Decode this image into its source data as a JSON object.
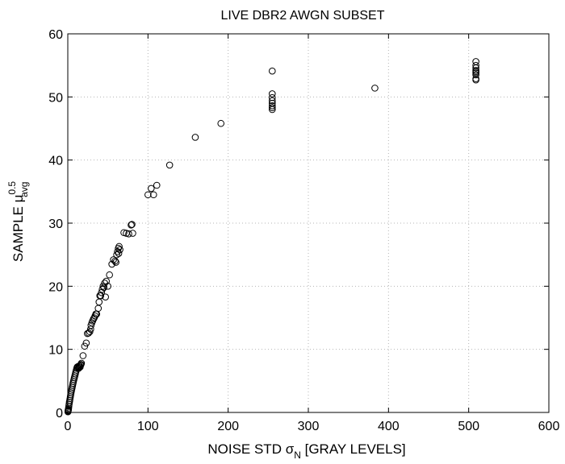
{
  "chart_data": {
    "type": "scatter",
    "title": "LIVE DBR2 AWGN SUBSET",
    "xlabel": {
      "prefix": "NOISE STD ",
      "symbol": "σ",
      "subscript": "N",
      "suffix": " [GRAY LEVELS]"
    },
    "ylabel": {
      "prefix": "SAMPLE ",
      "symbol": "μ",
      "superscript": "0.5",
      "subscript": "avg"
    },
    "xlim": [
      0,
      600
    ],
    "ylim": [
      0,
      60
    ],
    "xticks": [
      "0",
      "100",
      "200",
      "300",
      "400",
      "500",
      "600"
    ],
    "yticks": [
      "0",
      "10",
      "20",
      "30",
      "40",
      "50",
      "60"
    ],
    "grid": true,
    "marker": "open-circle",
    "color": "#000000",
    "series": [
      {
        "x": [
          0.2,
          0.3,
          0.5,
          0.6,
          0.8,
          1.0,
          1.3,
          1.6,
          2.0,
          2.4,
          2.8,
          3.2,
          3.6,
          4.0,
          4.5,
          5.0,
          5.5,
          6.0,
          6.5,
          7.0,
          7.6,
          8.2,
          8.8,
          9.4,
          10.0,
          10.6,
          11.2,
          11.8,
          12.4,
          13.0,
          13.6,
          14.2,
          14.8,
          15.4,
          16.0,
          16.5,
          17.0,
          19.0,
          21.0,
          23.0,
          24.5,
          26.0,
          27.5,
          28.5,
          29.0,
          30.0,
          31.0,
          32.0,
          33.0,
          34.0,
          35.0,
          36.0,
          38.0,
          39.0,
          40.0,
          41.0,
          42.0,
          43.0,
          44.0,
          45.0,
          46.0,
          47.0,
          48.0,
          50.0,
          52.0,
          55.0,
          57.0,
          59.0,
          60.0,
          61.0,
          62.0,
          63.0,
          63.5,
          64.0,
          65.0,
          70.0,
          73.0,
          76.0,
          79.0,
          80.0,
          81.0,
          100.0,
          104.0,
          107.0,
          111.0,
          127.0,
          159.0,
          191.0,
          255.0,
          255.0,
          255.0,
          255.0,
          255.0,
          255.0,
          255.0,
          255.0,
          383.0,
          509.0,
          509.0,
          509.0,
          509.0,
          509.0,
          509.0,
          509.0,
          509.0,
          509.0
        ],
        "y": [
          0.1,
          0.2,
          0.3,
          0.4,
          0.5,
          0.7,
          1.0,
          1.3,
          1.6,
          1.9,
          2.2,
          2.5,
          2.8,
          3.1,
          3.4,
          3.7,
          4.0,
          4.3,
          4.6,
          4.9,
          5.2,
          5.5,
          5.8,
          6.1,
          6.4,
          6.7,
          7.0,
          7.2,
          7.1,
          7.3,
          7.0,
          7.2,
          7.4,
          7.2,
          7.5,
          7.6,
          7.8,
          9.0,
          10.5,
          11.0,
          12.5,
          12.6,
          12.8,
          13.2,
          13.8,
          14.2,
          14.5,
          14.8,
          15.0,
          15.3,
          15.6,
          15.6,
          16.5,
          17.5,
          18.5,
          18.5,
          19.0,
          19.5,
          20.0,
          19.8,
          20.5,
          18.3,
          20.8,
          20.0,
          21.8,
          23.5,
          24.2,
          24.0,
          23.8,
          25.0,
          25.5,
          26.0,
          25.2,
          26.3,
          25.8,
          28.5,
          28.4,
          28.3,
          29.7,
          29.8,
          28.4,
          34.5,
          35.5,
          34.5,
          36.0,
          39.2,
          43.6,
          45.8,
          54.1,
          50.5,
          49.9,
          49.4,
          49.0,
          48.6,
          48.3,
          48.0,
          51.4,
          55.6,
          55.0,
          54.6,
          54.2,
          54.0,
          53.8,
          53.5,
          52.9,
          52.7
        ]
      }
    ]
  }
}
